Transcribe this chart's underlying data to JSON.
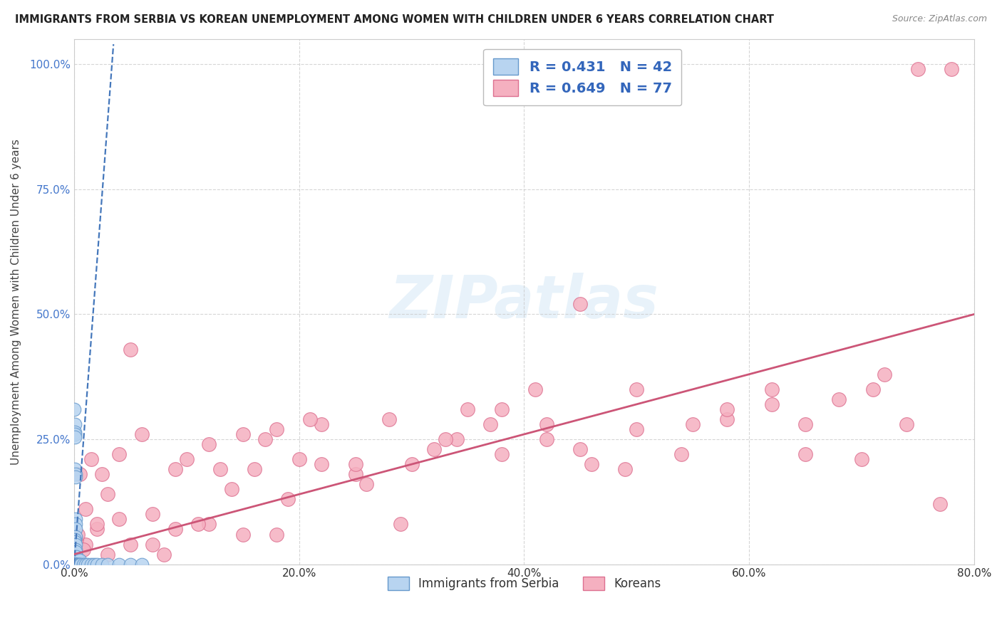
{
  "title": "IMMIGRANTS FROM SERBIA VS KOREAN UNEMPLOYMENT AMONG WOMEN WITH CHILDREN UNDER 6 YEARS CORRELATION CHART",
  "source": "Source: ZipAtlas.com",
  "ylabel": "Unemployment Among Women with Children Under 6 years",
  "xlim": [
    0.0,
    0.8
  ],
  "ylim": [
    0.0,
    1.05
  ],
  "xticks": [
    0.0,
    0.2,
    0.4,
    0.6,
    0.8
  ],
  "xtick_labels": [
    "0.0%",
    "20.0%",
    "40.0%",
    "60.0%",
    "80.0%"
  ],
  "yticks": [
    0.0,
    0.25,
    0.5,
    0.75,
    1.0
  ],
  "ytick_labels": [
    "0.0%",
    "25.0%",
    "50.0%",
    "75.0%",
    "100.0%"
  ],
  "watermark": "ZIPatlas",
  "serbia_color": "#b8d4f0",
  "serbia_edge": "#6699cc",
  "korea_color": "#f5b0c0",
  "korea_edge": "#dd7090",
  "serbia_R": 0.431,
  "serbia_N": 42,
  "korea_R": 0.649,
  "korea_N": 77,
  "trend_serbia_color": "#4477bb",
  "trend_korea_color": "#cc5577",
  "serbia_x": [
    0.0002,
    0.0003,
    0.0003,
    0.0004,
    0.0004,
    0.0005,
    0.0005,
    0.0006,
    0.0006,
    0.0007,
    0.0007,
    0.0008,
    0.0008,
    0.0009,
    0.001,
    0.001,
    0.001,
    0.0012,
    0.0012,
    0.0013,
    0.0014,
    0.0015,
    0.0016,
    0.0018,
    0.002,
    0.0022,
    0.0025,
    0.003,
    0.004,
    0.005,
    0.006,
    0.008,
    0.01,
    0.012,
    0.015,
    0.018,
    0.02,
    0.025,
    0.03,
    0.04,
    0.05,
    0.06
  ],
  "serbia_y": [
    0.0,
    0.0,
    0.0,
    0.0,
    0.0,
    0.0,
    0.0,
    0.0,
    0.0,
    0.0,
    0.0,
    0.0,
    0.0,
    0.0,
    0.0,
    0.0,
    0.0,
    0.0,
    0.0,
    0.0,
    0.0,
    0.0,
    0.0,
    0.0,
    0.0,
    0.0,
    0.0,
    0.0,
    0.0,
    0.0,
    0.0,
    0.0,
    0.0,
    0.0,
    0.0,
    0.0,
    0.0,
    0.0,
    0.0,
    0.0,
    0.0,
    0.0
  ],
  "serbia_x_spread": [
    0.0003,
    0.0004,
    0.0005,
    0.0006,
    0.0007,
    0.0008,
    0.001,
    0.001,
    0.0012,
    0.0015,
    0.001,
    0.001,
    0.0008,
    0.0009,
    0.001,
    0.0012,
    0.0015,
    0.002,
    0.003,
    0.005,
    0.001,
    0.001,
    0.001,
    0.001,
    0.001,
    0.002,
    0.002,
    0.003,
    0.004,
    0.005,
    0.006,
    0.008,
    0.01,
    0.012,
    0.015,
    0.018,
    0.02,
    0.025,
    0.03,
    0.04,
    0.05,
    0.06
  ],
  "serbia_y_spread": [
    0.31,
    0.28,
    0.265,
    0.26,
    0.255,
    0.19,
    0.18,
    0.175,
    0.09,
    0.08,
    0.07,
    0.055,
    0.05,
    0.045,
    0.04,
    0.03,
    0.025,
    0.015,
    0.01,
    0.008,
    0.0,
    0.0,
    0.0,
    0.0,
    0.0,
    0.0,
    0.0,
    0.0,
    0.0,
    0.0,
    0.0,
    0.0,
    0.0,
    0.0,
    0.0,
    0.0,
    0.0,
    0.0,
    0.0,
    0.0,
    0.0,
    0.0
  ],
  "korea_x": [
    0.001,
    0.005,
    0.01,
    0.015,
    0.02,
    0.03,
    0.04,
    0.05,
    0.07,
    0.08,
    0.1,
    0.12,
    0.14,
    0.16,
    0.18,
    0.2,
    0.22,
    0.25,
    0.28,
    0.32,
    0.35,
    0.38,
    0.42,
    0.45,
    0.5,
    0.55,
    0.58,
    0.62,
    0.65,
    0.7,
    0.72,
    0.75,
    0.78,
    0.002,
    0.008,
    0.02,
    0.03,
    0.05,
    0.07,
    0.09,
    0.11,
    0.13,
    0.15,
    0.17,
    0.19,
    0.22,
    0.26,
    0.3,
    0.34,
    0.38,
    0.42,
    0.46,
    0.5,
    0.54,
    0.58,
    0.62,
    0.65,
    0.68,
    0.71,
    0.74,
    0.77,
    0.003,
    0.01,
    0.025,
    0.04,
    0.06,
    0.09,
    0.12,
    0.15,
    0.18,
    0.21,
    0.25,
    0.29,
    0.33,
    0.37,
    0.41,
    0.45,
    0.49
  ],
  "korea_y": [
    0.02,
    0.18,
    0.04,
    0.21,
    0.07,
    0.02,
    0.22,
    0.43,
    0.04,
    0.02,
    0.21,
    0.08,
    0.15,
    0.19,
    0.06,
    0.21,
    0.28,
    0.18,
    0.29,
    0.23,
    0.31,
    0.31,
    0.25,
    0.52,
    0.27,
    0.28,
    0.29,
    0.32,
    0.22,
    0.21,
    0.38,
    0.99,
    0.99,
    0.05,
    0.03,
    0.08,
    0.14,
    0.04,
    0.1,
    0.19,
    0.08,
    0.19,
    0.06,
    0.25,
    0.13,
    0.2,
    0.16,
    0.2,
    0.25,
    0.22,
    0.28,
    0.2,
    0.35,
    0.22,
    0.31,
    0.35,
    0.28,
    0.33,
    0.35,
    0.28,
    0.12,
    0.06,
    0.11,
    0.18,
    0.09,
    0.26,
    0.07,
    0.24,
    0.26,
    0.27,
    0.29,
    0.2,
    0.08,
    0.25,
    0.28,
    0.35,
    0.23,
    0.19
  ],
  "serbia_trend_x": [
    0.0,
    0.035
  ],
  "serbia_trend_y": [
    0.0,
    1.04
  ],
  "korea_trend_x": [
    0.0,
    0.8
  ],
  "korea_trend_y": [
    0.02,
    0.5
  ]
}
